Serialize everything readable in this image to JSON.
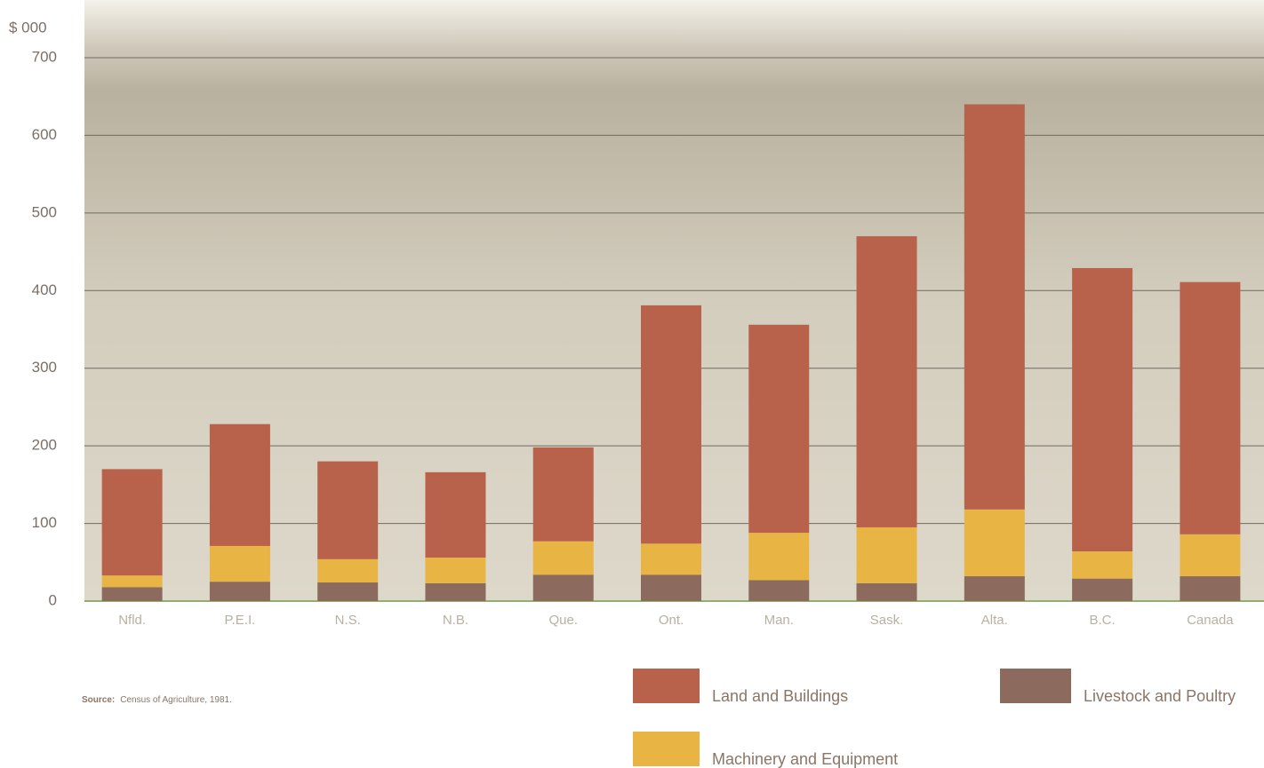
{
  "chart_data": {
    "type": "stacked-bar",
    "y_label": "$ 000",
    "categories": [
      "Nfld.",
      "P.E.I.",
      "N.S.",
      "N.B.",
      "Que.",
      "Ont.",
      "Man.",
      "Sask.",
      "Alta.",
      "B.C.",
      "Canada"
    ],
    "series": [
      {
        "name": "Livestock and Poultry",
        "color": "#8c6b5e",
        "values": [
          18,
          25,
          24,
          23,
          34,
          34,
          27,
          23,
          32,
          29,
          32
        ]
      },
      {
        "name": "Machinery and Equipment",
        "color": "#e8b545",
        "values": [
          15,
          46,
          30,
          33,
          43,
          40,
          61,
          72,
          86,
          35,
          54
        ]
      },
      {
        "name": "Land and Buildings",
        "color": "#b9624b",
        "values": [
          137,
          157,
          126,
          110,
          121,
          307,
          268,
          375,
          522,
          365,
          325
        ]
      }
    ],
    "ylim": [
      0,
      700
    ],
    "yticks": [
      0,
      100,
      200,
      300,
      400,
      500,
      600,
      700
    ],
    "grid": true,
    "source_label": "Source:",
    "source_text": "Census of Agriculture, 1981."
  }
}
